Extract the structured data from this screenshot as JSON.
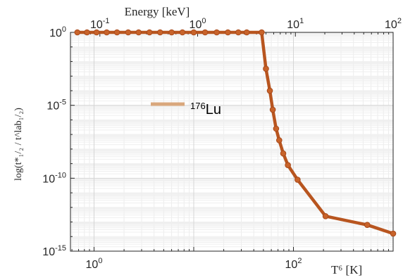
{
  "chart_data": {
    "type": "line",
    "title": "",
    "xlabel": "T⁶ [K]",
    "xlabel_top": "Energy [keV]",
    "ylabel": "log(t*₁/₂ / t^lab₁/₂)",
    "xscale": "log",
    "yscale": "log",
    "xlim": [
      0.58,
      1000
    ],
    "ylim": [
      1e-15,
      1
    ],
    "top_axis_range_keV": [
      0.05,
      100
    ],
    "bottom_ticks": [
      {
        "value": 1,
        "base": "10",
        "exp": "0"
      },
      {
        "value": 100,
        "base": "10",
        "exp": "2"
      }
    ],
    "left_ticks": [
      {
        "value": 1,
        "base": "10",
        "exp": "0"
      },
      {
        "value": 1e-05,
        "base": "10",
        "exp": "-5"
      },
      {
        "value": 1e-10,
        "base": "10",
        "exp": "-10"
      },
      {
        "value": 1e-15,
        "base": "10",
        "exp": "-15"
      }
    ],
    "top_ticks": [
      {
        "value": 0.1,
        "base": "10",
        "exp": "-1"
      },
      {
        "value": 1,
        "base": "10",
        "exp": "0"
      },
      {
        "value": 10,
        "base": "10",
        "exp": "1"
      },
      {
        "value": 100,
        "base": "10",
        "exp": "2"
      }
    ],
    "grid": true,
    "legend_position": "upper-left",
    "series": [
      {
        "name": "¹⁷⁶Lu",
        "legend_sup": "176",
        "legend_text": "Lu",
        "color": "#b8551f",
        "legend_color": "#d9a77c",
        "x": [
          0.68,
          0.85,
          1.06,
          1.34,
          1.7,
          2.2,
          2.8,
          3.6,
          4.6,
          6.0,
          7.7,
          10,
          13,
          17,
          22,
          28,
          34,
          48,
          53,
          58,
          62,
          67,
          72,
          79,
          88,
          110,
          210,
          550,
          1000
        ],
        "y": [
          1,
          1,
          1,
          1,
          1,
          1,
          1,
          1,
          1,
          1,
          1,
          1,
          1,
          1,
          1,
          1,
          1,
          1,
          0.0032,
          0.0001,
          5e-06,
          2.5e-07,
          4e-08,
          5e-09,
          7.9e-10,
          7.9e-11,
          2.5e-13,
          6.3e-14,
          1.6e-14
        ]
      }
    ]
  }
}
